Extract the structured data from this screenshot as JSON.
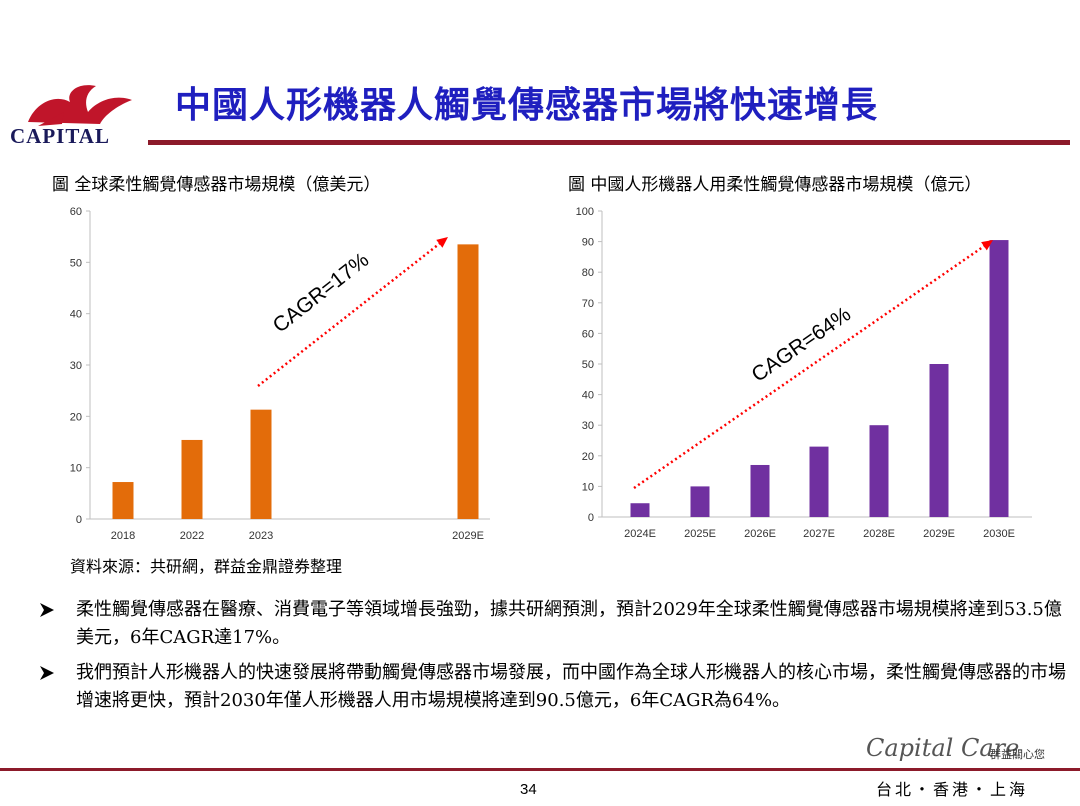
{
  "header": {
    "logo_text": "CAPITAL",
    "title": "中國人形機器人觸覺傳感器市場將快速增長"
  },
  "captions": {
    "left": "圖  全球柔性觸覺傳感器市場規模（億美元）",
    "right": "圖  中國人形機器人用柔性觸覺傳感器市場規模（億元）"
  },
  "chart_data": [
    {
      "type": "bar",
      "categories": [
        "2018",
        "2022",
        "2023",
        "2029E"
      ],
      "values": [
        7.2,
        15.4,
        21.3,
        53.5
      ],
      "ylim": [
        0,
        60
      ],
      "yticks": [
        "0",
        "10",
        "20",
        "30",
        "40",
        "50",
        "60"
      ],
      "annotation": "CAGR=17%",
      "bar_color": "#e36c0a",
      "grid": false
    },
    {
      "type": "bar",
      "categories": [
        "2024E",
        "2025E",
        "2026E",
        "2027E",
        "2028E",
        "2029E",
        "2030E"
      ],
      "values": [
        4.5,
        10,
        17,
        23,
        30,
        50,
        90.5
      ],
      "ylim": [
        0,
        100
      ],
      "yticks": [
        "0",
        "10",
        "20",
        "30",
        "40",
        "50",
        "60",
        "70",
        "80",
        "90",
        "100"
      ],
      "annotation": "CAGR=64%",
      "bar_color": "#7030a0",
      "grid": false
    }
  ],
  "source": "資料來源：共研網，群益金鼎證券整理",
  "bullets": [
    "柔性觸覺傳感器在醫療、消費電子等領域增長強勁，據共研網預測，預計2029年全球柔性觸覺傳感器市場規模將達到53.5億美元，6年CAGR達17%。",
    "我們預計人形機器人的快速發展將帶動觸覺傳感器市場發展，而中國作為全球人形機器人的核心市場，柔性觸覺傳感器的市場增速將更快，預計2030年僅人形機器人用市場規模將達到90.5億元，6年CAGR為64%。"
  ],
  "footer": {
    "page_number": "34",
    "brand": "Capital Care",
    "brand_cn": "群益關心您",
    "cities": "台北・香港・上海"
  },
  "colors": {
    "title": "#1f1fbf",
    "rule": "#8c1a2a",
    "annotation_arrow": "#ff0000"
  }
}
